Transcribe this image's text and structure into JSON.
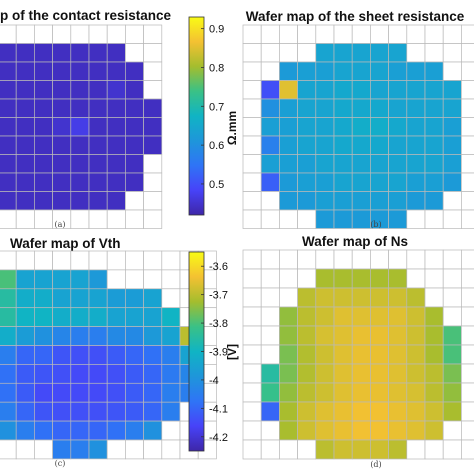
{
  "figure": {
    "panels": [
      {
        "id": "a",
        "title": "p of the contact resistance",
        "panel_label": "(a)",
        "colorbar": {
          "unit": "Ω.mm",
          "ticks": [
            "0.9",
            "0.8",
            "0.7",
            "0.6",
            "0.5"
          ]
        }
      },
      {
        "id": "b",
        "title": "Wafer map of the sheet resistance",
        "panel_label": "(b)"
      },
      {
        "id": "c",
        "title": "Wafer map of Vth",
        "panel_label": "(c)",
        "colorbar": {
          "unit": "[V]",
          "ticks": [
            "-3.6",
            "-3.7",
            "-3.8",
            "-3.9",
            "-4",
            "-4.1",
            "-4.2"
          ]
        }
      },
      {
        "id": "d",
        "title": "Wafer map of Ns",
        "panel_label": "(d)"
      }
    ]
  },
  "chart_data": [
    {
      "type": "heatmap",
      "title": "p of the contact resistance",
      "colorscale": "parula",
      "zlim": [
        0.42,
        0.93
      ],
      "colorbar_label": "Ω.mm",
      "rows": 11,
      "cols": 9,
      "grid": true,
      "note": "values shown for cropped visible columns",
      "values": [
        [
          null,
          null,
          null,
          null,
          null,
          null,
          null,
          null,
          null
        ],
        [
          0.44,
          0.44,
          0.44,
          0.44,
          0.44,
          0.44,
          0.44,
          null,
          null
        ],
        [
          0.44,
          0.44,
          0.44,
          0.44,
          0.44,
          0.44,
          0.44,
          0.44,
          null
        ],
        [
          0.44,
          0.44,
          0.44,
          0.44,
          0.44,
          0.44,
          0.45,
          0.44,
          null
        ],
        [
          0.44,
          0.44,
          0.44,
          0.44,
          0.44,
          0.44,
          0.44,
          0.44,
          0.44
        ],
        [
          0.44,
          0.44,
          0.44,
          0.45,
          0.47,
          0.44,
          0.44,
          0.44,
          0.44
        ],
        [
          0.44,
          0.44,
          0.44,
          0.44,
          0.44,
          0.44,
          0.44,
          0.44,
          0.44
        ],
        [
          0.44,
          0.44,
          0.44,
          0.44,
          0.44,
          0.44,
          0.44,
          0.44,
          null
        ],
        [
          0.44,
          0.44,
          0.44,
          0.44,
          0.44,
          0.44,
          0.44,
          0.44,
          null
        ],
        [
          0.44,
          0.44,
          0.44,
          0.44,
          0.44,
          0.44,
          0.44,
          null,
          null
        ],
        [
          null,
          null,
          null,
          null,
          null,
          null,
          null,
          null,
          null
        ]
      ]
    },
    {
      "type": "heatmap",
      "title": "Wafer map of the sheet resistance",
      "colorscale": "parula",
      "zlim": [
        0.42,
        0.93
      ],
      "rows": 11,
      "cols": 13,
      "grid": true,
      "values": [
        [
          null,
          null,
          null,
          null,
          null,
          null,
          null,
          null,
          null,
          null,
          null,
          null,
          null
        ],
        [
          null,
          null,
          null,
          null,
          0.64,
          0.64,
          0.64,
          0.64,
          0.64,
          null,
          null,
          null,
          null
        ],
        [
          null,
          null,
          0.62,
          0.63,
          0.63,
          0.64,
          0.64,
          0.64,
          0.63,
          0.63,
          0.63,
          null,
          null
        ],
        [
          null,
          0.5,
          0.85,
          0.64,
          0.64,
          0.65,
          0.65,
          0.64,
          0.64,
          0.64,
          0.64,
          0.64,
          null
        ],
        [
          null,
          0.6,
          0.63,
          0.64,
          0.64,
          0.65,
          0.65,
          0.65,
          0.64,
          0.64,
          0.64,
          0.64,
          null
        ],
        [
          null,
          0.63,
          0.63,
          0.64,
          0.64,
          0.65,
          0.66,
          0.66,
          0.65,
          0.64,
          0.64,
          0.63,
          null
        ],
        [
          null,
          0.57,
          0.63,
          0.64,
          0.64,
          0.65,
          0.65,
          0.65,
          0.64,
          0.64,
          0.64,
          0.63,
          null
        ],
        [
          null,
          0.63,
          0.63,
          0.63,
          0.64,
          0.64,
          0.64,
          0.64,
          0.64,
          0.64,
          0.64,
          0.63,
          null
        ],
        [
          null,
          0.52,
          0.62,
          0.63,
          0.63,
          0.64,
          0.64,
          0.64,
          0.64,
          0.63,
          0.63,
          0.62,
          null
        ],
        [
          null,
          null,
          0.62,
          0.62,
          0.63,
          0.63,
          0.63,
          0.63,
          0.63,
          0.62,
          0.62,
          null,
          null
        ],
        [
          null,
          null,
          null,
          null,
          0.62,
          0.62,
          0.62,
          0.62,
          0.62,
          null,
          null,
          null,
          null
        ]
      ]
    },
    {
      "type": "heatmap",
      "title": "Wafer map of Vth",
      "colorscale": "parula",
      "zlim": [
        -4.25,
        -3.55
      ],
      "colorbar_label": "[V]",
      "rows": 11,
      "cols": 12,
      "grid": true,
      "note": "values shown for cropped visible columns",
      "values": [
        [
          null,
          null,
          null,
          null,
          null,
          null,
          null,
          null,
          null,
          null,
          null,
          null
        ],
        [
          -3.8,
          -3.95,
          -3.95,
          -3.95,
          -3.95,
          -3.98,
          null,
          null,
          null,
          null,
          null,
          null
        ],
        [
          -3.85,
          -3.92,
          -3.92,
          -3.95,
          -3.95,
          -3.95,
          -3.97,
          -3.97,
          -3.95,
          null,
          null,
          null
        ],
        [
          -3.85,
          -3.9,
          -3.9,
          -3.92,
          -3.92,
          -3.92,
          -3.95,
          -3.95,
          -3.95,
          -3.9,
          null,
          null
        ],
        [
          -3.92,
          -3.97,
          -4.0,
          -4.03,
          -4.05,
          -4.05,
          -4.02,
          -4.02,
          -3.98,
          -3.95,
          -3.7,
          null
        ],
        [
          -4.05,
          -4.1,
          -4.1,
          -4.13,
          -4.14,
          -4.14,
          -4.12,
          -4.1,
          -4.08,
          -4.05,
          -3.95,
          null
        ],
        [
          -4.08,
          -4.12,
          -4.13,
          -4.14,
          -4.15,
          -4.15,
          -4.14,
          -4.12,
          -4.1,
          -4.06,
          -4.03,
          null
        ],
        [
          -4.08,
          -4.12,
          -4.15,
          -4.15,
          -4.15,
          -4.15,
          -4.14,
          -4.12,
          -4.1,
          -4.05,
          -4.05,
          null
        ],
        [
          -4.05,
          -4.1,
          -4.13,
          -4.14,
          -4.14,
          -4.14,
          -4.13,
          -4.12,
          -4.1,
          -4.05,
          null,
          null
        ],
        [
          -4.0,
          -4.05,
          -4.08,
          -4.1,
          -4.1,
          -4.1,
          -4.08,
          -4.05,
          -4.0,
          null,
          null,
          null
        ],
        [
          null,
          null,
          null,
          -4.05,
          -4.05,
          -4.0,
          null,
          null,
          null,
          null,
          null,
          null
        ]
      ]
    },
    {
      "type": "heatmap",
      "title": "Wafer map of Ns",
      "colorscale": "parula",
      "zlim": [
        -4.25,
        -3.55
      ],
      "rows": 11,
      "cols": 13,
      "grid": true,
      "values": [
        [
          null,
          null,
          null,
          null,
          null,
          null,
          null,
          null,
          null,
          null,
          null,
          null,
          null
        ],
        [
          null,
          null,
          null,
          null,
          -3.72,
          -3.72,
          -3.72,
          -3.72,
          -3.72,
          null,
          null,
          null,
          null
        ],
        [
          null,
          null,
          null,
          -3.7,
          -3.68,
          -3.68,
          -3.68,
          -3.68,
          -3.68,
          -3.7,
          null,
          null,
          null
        ],
        [
          null,
          null,
          -3.74,
          -3.7,
          -3.68,
          -3.66,
          -3.66,
          -3.66,
          -3.66,
          -3.68,
          -3.72,
          null,
          null
        ],
        [
          null,
          null,
          -3.74,
          -3.7,
          -3.67,
          -3.66,
          -3.65,
          -3.65,
          -3.66,
          -3.68,
          -3.72,
          -3.8,
          null
        ],
        [
          null,
          null,
          -3.76,
          -3.71,
          -3.68,
          -3.66,
          -3.65,
          -3.65,
          -3.66,
          -3.68,
          -3.72,
          -3.8,
          null
        ],
        [
          null,
          -3.85,
          -3.76,
          -3.71,
          -3.68,
          -3.66,
          -3.65,
          -3.65,
          -3.66,
          -3.68,
          -3.7,
          -3.76,
          null
        ],
        [
          null,
          -3.82,
          -3.74,
          -3.7,
          -3.68,
          -3.66,
          -3.65,
          -3.65,
          -3.66,
          -3.67,
          -3.7,
          -3.74,
          null
        ],
        [
          null,
          -4.1,
          -3.72,
          -3.68,
          -3.66,
          -3.65,
          -3.64,
          -3.64,
          -3.65,
          -3.66,
          -3.68,
          -3.72,
          null
        ],
        [
          null,
          null,
          -3.72,
          -3.68,
          -3.66,
          -3.65,
          -3.64,
          -3.64,
          -3.65,
          -3.66,
          -3.68,
          null,
          null
        ],
        [
          null,
          null,
          null,
          null,
          -3.7,
          -3.68,
          -3.68,
          -3.68,
          -3.7,
          null,
          null,
          null,
          null
        ]
      ]
    }
  ]
}
